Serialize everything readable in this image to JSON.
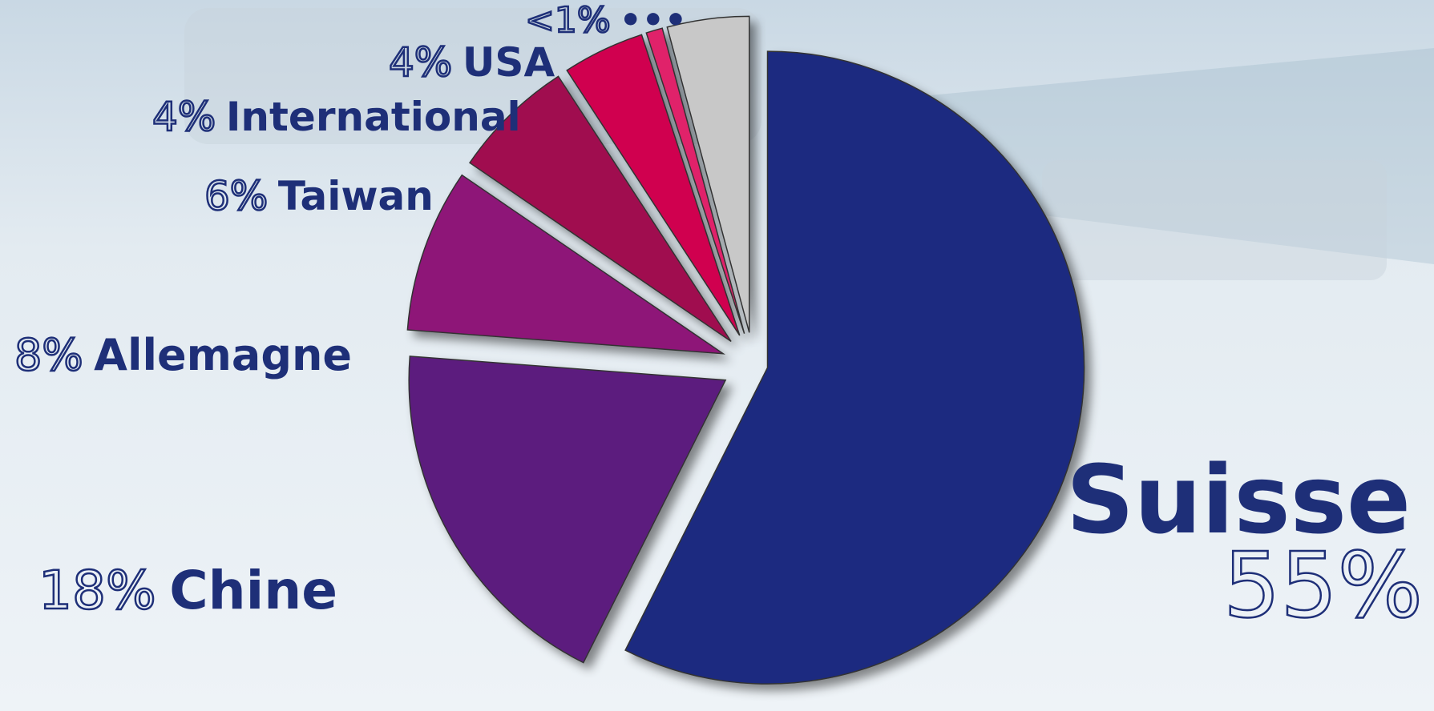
{
  "chart_data": {
    "type": "pie",
    "categories": [
      "Suisse",
      "Chine",
      "Allemagne",
      "Taiwan",
      "International",
      "•••",
      "USA"
    ],
    "values": [
      55,
      18,
      8,
      6,
      4,
      0.8,
      4
    ],
    "value_labels": [
      "55%",
      "18%",
      "8%",
      "6%",
      "4%",
      "<1%",
      "4%"
    ],
    "colors": [
      "#1a2a80",
      "#5c1f7e",
      "#8e1278",
      "#a0104f",
      "#d0004f",
      "#e0206a",
      "#c8c8c8"
    ]
  }
}
